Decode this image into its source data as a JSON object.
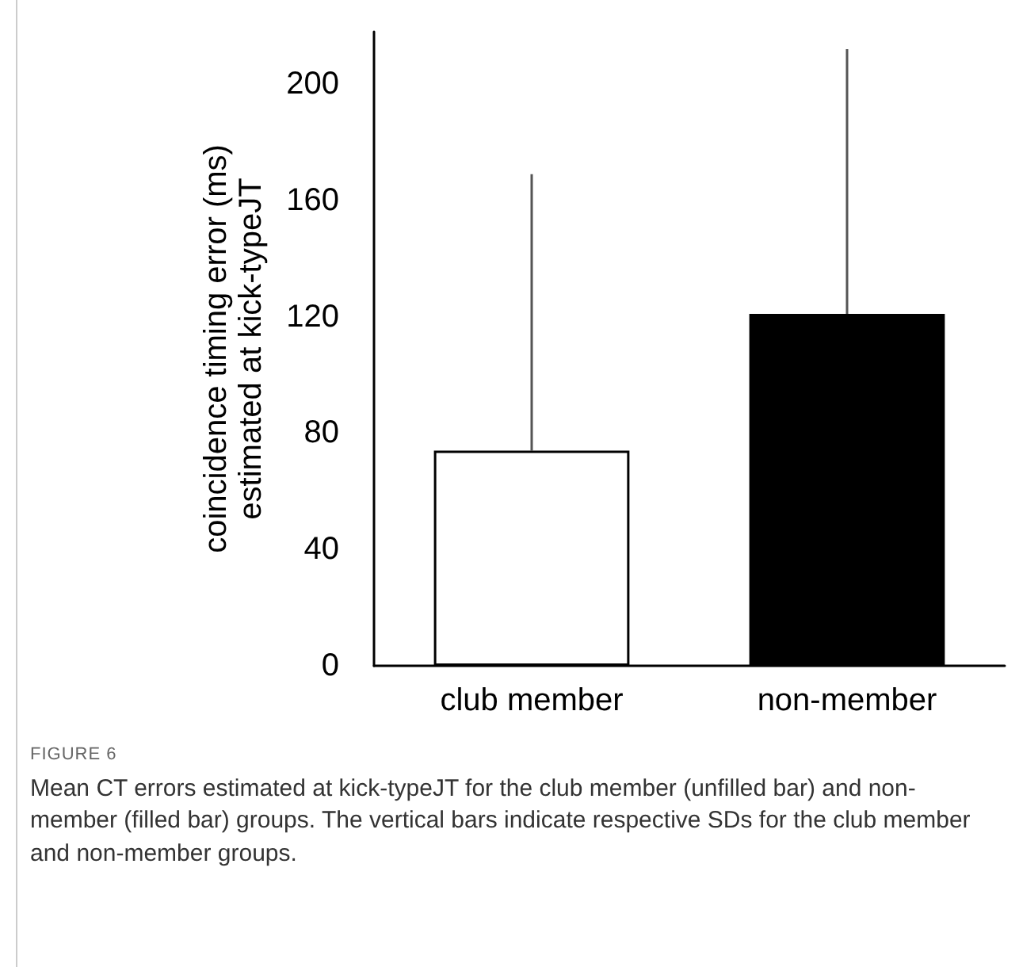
{
  "chart_data": {
    "type": "bar",
    "ylabel": "coincidence timing error (ms)\nestimated at kick-typeJT",
    "categories": [
      "club member",
      "non-member"
    ],
    "values": [
      74,
      121
    ],
    "colors": [
      "#ffffff",
      "#000000"
    ],
    "errors": [
      [
        74,
        169
      ],
      [
        121,
        212
      ]
    ],
    "ylim": [
      0,
      218
    ],
    "yticks": [
      0,
      40,
      80,
      120,
      160,
      200
    ],
    "grid": false,
    "annotations": [
      "FIGURE 6",
      "Mean CT errors estimated at kick-typeJT for the club member (unfilled bar) and non-member (filled bar) groups. The vertical bars indicate respective SDs for the club member and non-member groups."
    ]
  }
}
